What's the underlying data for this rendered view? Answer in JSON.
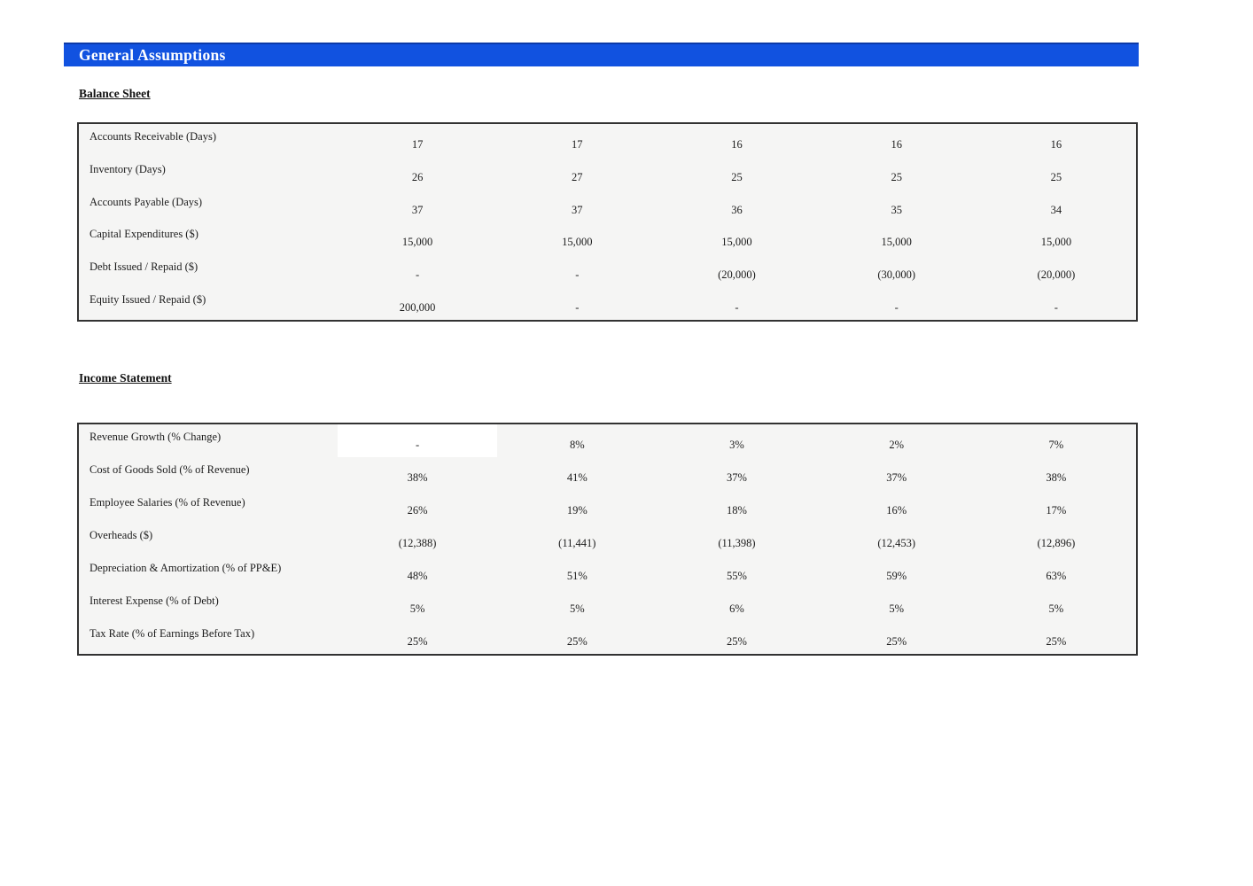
{
  "page_title": "General Assumptions",
  "colors": {
    "header_blue": "#1152e0",
    "header_blue_top_edge": "#0c3aa8",
    "table_background": "#f5f5f4",
    "table_border": "#323232",
    "highlight_cell_background": "#ffffff",
    "text": "#1c1c1c"
  },
  "sections": [
    {
      "id": "balance_sheet",
      "heading": "Balance Sheet",
      "rows": [
        {
          "label": "Accounts Receivable (Days)",
          "values": [
            "17",
            "17",
            "16",
            "16",
            "16"
          ]
        },
        {
          "label": "Inventory (Days)",
          "values": [
            "26",
            "27",
            "25",
            "25",
            "25"
          ]
        },
        {
          "label": "Accounts Payable (Days)",
          "values": [
            "37",
            "37",
            "36",
            "35",
            "34"
          ]
        },
        {
          "label": "Capital Expenditures ($)",
          "values": [
            "15,000",
            "15,000",
            "15,000",
            "15,000",
            "15,000"
          ]
        },
        {
          "label": "Debt Issued / Repaid ($)",
          "values": [
            "-",
            "-",
            "(20,000)",
            "(30,000)",
            "(20,000)"
          ]
        },
        {
          "label": "Equity Issued / Repaid ($)",
          "values": [
            "200,000",
            "-",
            "-",
            "-",
            "-"
          ]
        }
      ]
    },
    {
      "id": "income_statement",
      "heading": "Income Statement",
      "highlight_cell": {
        "row": 0,
        "col": 0
      },
      "rows": [
        {
          "label": "Revenue Growth (% Change)",
          "values": [
            "-",
            "8%",
            "3%",
            "2%",
            "7%"
          ]
        },
        {
          "label": "Cost of Goods Sold (% of Revenue)",
          "values": [
            "38%",
            "41%",
            "37%",
            "37%",
            "38%"
          ]
        },
        {
          "label": "Employee Salaries (% of Revenue)",
          "values": [
            "26%",
            "19%",
            "18%",
            "16%",
            "17%"
          ]
        },
        {
          "label": "Overheads ($)",
          "values": [
            "(12,388)",
            "(11,441)",
            "(11,398)",
            "(12,453)",
            "(12,896)"
          ]
        },
        {
          "label": "Depreciation & Amortization (% of PP&E)",
          "values": [
            "48%",
            "51%",
            "55%",
            "59%",
            "63%"
          ]
        },
        {
          "label": "Interest Expense (% of Debt)",
          "values": [
            "5%",
            "5%",
            "6%",
            "5%",
            "5%"
          ]
        },
        {
          "label": "Tax Rate (% of Earnings Before Tax)",
          "values": [
            "25%",
            "25%",
            "25%",
            "25%",
            "25%"
          ]
        }
      ]
    }
  ]
}
